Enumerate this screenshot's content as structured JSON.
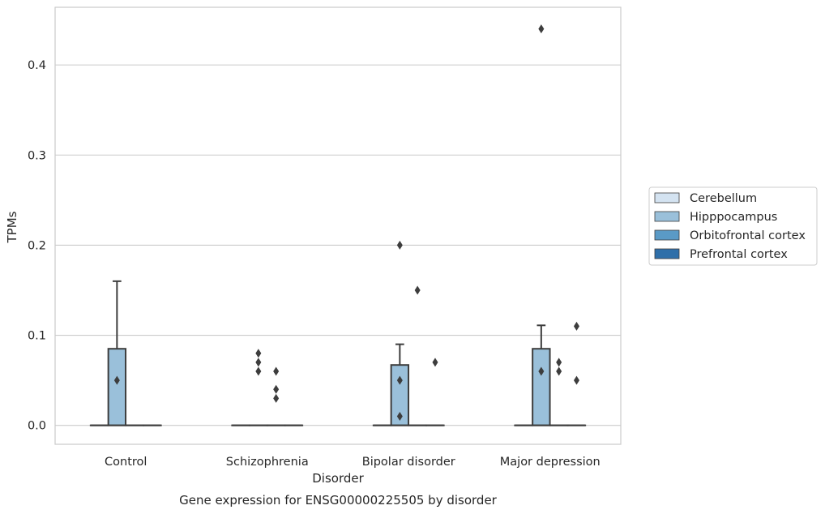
{
  "chart_data": {
    "type": "box",
    "title": "Gene expression for ENSG00000225505 by disorder",
    "xlabel": "Disorder",
    "ylabel": "TPMs",
    "ylim": [
      -0.021,
      0.464
    ],
    "yticks": [
      0.0,
      0.1,
      0.2,
      0.3,
      0.4
    ],
    "ytick_labels": [
      "0.0",
      "0.1",
      "0.2",
      "0.3",
      "0.4"
    ],
    "categories": [
      "Control",
      "Schizophrenia",
      "Bipolar disorder",
      "Major depression"
    ],
    "grid": true,
    "legend_position": "right",
    "series": [
      {
        "name": "Cerebellum",
        "color": "#d4e3f1",
        "boxes": [
          {
            "q1": 0,
            "median": 0,
            "q3": 0,
            "whisker_low": 0,
            "whisker_high": 0,
            "outliers": []
          },
          {
            "q1": 0,
            "median": 0,
            "q3": 0,
            "whisker_low": 0,
            "whisker_high": 0,
            "outliers": []
          },
          {
            "q1": 0,
            "median": 0,
            "q3": 0,
            "whisker_low": 0,
            "whisker_high": 0,
            "outliers": []
          },
          {
            "q1": 0,
            "median": 0,
            "q3": 0,
            "whisker_low": 0,
            "whisker_high": 0,
            "outliers": []
          }
        ]
      },
      {
        "name": "Hipppocampus",
        "color": "#9ac0da",
        "boxes": [
          {
            "q1": 0,
            "median": 0,
            "q3": 0.085,
            "whisker_low": 0,
            "whisker_high": 0.16,
            "outliers": [
              0.05
            ]
          },
          {
            "q1": 0,
            "median": 0,
            "q3": 0,
            "whisker_low": 0,
            "whisker_high": 0,
            "outliers": [
              0.06,
              0.08,
              0.07
            ]
          },
          {
            "q1": 0,
            "median": 0,
            "q3": 0.067,
            "whisker_low": 0,
            "whisker_high": 0.09,
            "outliers": [
              0.05,
              0.2,
              0.01
            ]
          },
          {
            "q1": 0,
            "median": 0,
            "q3": 0.085,
            "whisker_low": 0,
            "whisker_high": 0.111,
            "outliers": [
              0.06,
              0.44
            ]
          }
        ]
      },
      {
        "name": "Orbitofrontal cortex",
        "color": "#5a9ac6",
        "boxes": [
          {
            "q1": 0,
            "median": 0,
            "q3": 0,
            "whisker_low": 0,
            "whisker_high": 0,
            "outliers": []
          },
          {
            "q1": 0,
            "median": 0,
            "q3": 0,
            "whisker_low": 0,
            "whisker_high": 0,
            "outliers": [
              0.06,
              0.04,
              0.03
            ]
          },
          {
            "q1": 0,
            "median": 0,
            "q3": 0,
            "whisker_low": 0,
            "whisker_high": 0,
            "outliers": [
              0.15
            ]
          },
          {
            "q1": 0,
            "median": 0,
            "q3": 0,
            "whisker_low": 0,
            "whisker_high": 0,
            "outliers": [
              0.07,
              0.06
            ]
          }
        ]
      },
      {
        "name": "Prefrontal cortex",
        "color": "#2f6fa9",
        "boxes": [
          {
            "q1": 0,
            "median": 0,
            "q3": 0,
            "whisker_low": 0,
            "whisker_high": 0,
            "outliers": []
          },
          {
            "q1": 0,
            "median": 0,
            "q3": 0,
            "whisker_low": 0,
            "whisker_high": 0,
            "outliers": []
          },
          {
            "q1": 0,
            "median": 0,
            "q3": 0,
            "whisker_low": 0,
            "whisker_high": 0,
            "outliers": [
              0.07
            ]
          },
          {
            "q1": 0,
            "median": 0,
            "q3": 0,
            "whisker_low": 0,
            "whisker_high": 0,
            "outliers": [
              0.11,
              0.05
            ]
          }
        ]
      }
    ]
  }
}
